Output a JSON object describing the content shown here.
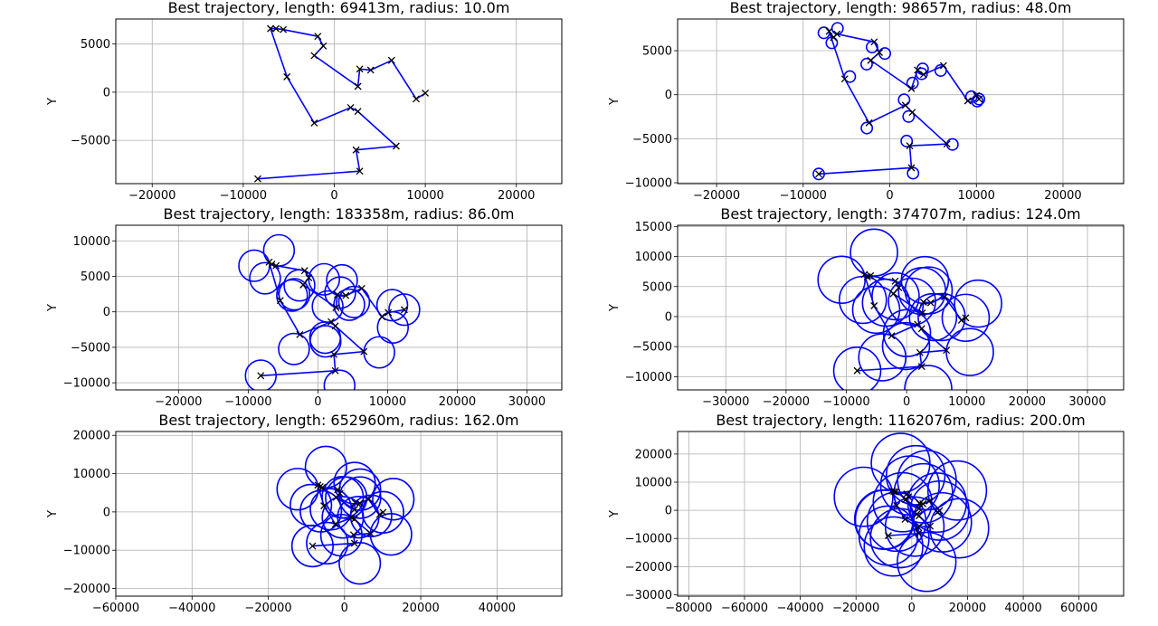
{
  "chart_data": [
    {
      "type": "line",
      "title": "Best trajectory, length: 69413m, radius: 10.0m",
      "ylabel": "Y",
      "xlim": [
        -24000,
        25000
      ],
      "ylim": [
        -9500,
        7600
      ],
      "xticks": [
        -20000,
        -10000,
        0,
        10000,
        20000
      ],
      "xtick_labels": [
        "−20000",
        "−10000",
        "0",
        "10000",
        "20000"
      ],
      "yticks": [
        -5000,
        0,
        5000
      ],
      "ytick_labels": [
        "−5000",
        "0",
        "5000"
      ],
      "grid": true,
      "trajectory": {
        "color": "#0000ff",
        "loop_radius": 10
      },
      "waypoints": [
        [
          -8400,
          -9000
        ],
        [
          2800,
          -8200
        ],
        [
          2400,
          -6000
        ],
        [
          6800,
          -5600
        ],
        [
          2600,
          -2000
        ],
        [
          1800,
          -1600
        ],
        [
          -2200,
          -3200
        ],
        [
          -5200,
          1600
        ],
        [
          -7000,
          6600
        ],
        [
          -6400,
          6600
        ],
        [
          -5600,
          6500
        ],
        [
          -1800,
          5800
        ],
        [
          -1200,
          4800
        ],
        [
          -2200,
          3800
        ],
        [
          2600,
          600
        ],
        [
          2800,
          2400
        ],
        [
          4000,
          2300
        ],
        [
          6300,
          3300
        ],
        [
          9000,
          -700
        ],
        [
          10000,
          -100
        ]
      ]
    },
    {
      "type": "line",
      "title": "Best trajectory, length: 98657m, radius: 48.0m",
      "ylabel": "Y",
      "xlim": [
        -24500,
        27000
      ],
      "ylim": [
        -10100,
        8600
      ],
      "xticks": [
        -20000,
        -10000,
        0,
        10000,
        20000
      ],
      "xtick_labels": [
        "−20000",
        "−10000",
        "0",
        "10000",
        "20000"
      ],
      "yticks": [
        -10000,
        -5000,
        0,
        5000
      ],
      "ytick_labels": [
        "−10000",
        "−5000",
        "0",
        "5000"
      ],
      "grid": true,
      "trajectory": {
        "color": "#0000ff",
        "loop_radius": 640
      },
      "waypoints": [
        [
          -8200,
          -9000
        ],
        [
          2500,
          -8300
        ],
        [
          2300,
          -5800
        ],
        [
          6600,
          -5600
        ],
        [
          2600,
          -2000
        ],
        [
          1800,
          -1200
        ],
        [
          -2400,
          -3200
        ],
        [
          -5200,
          1800
        ],
        [
          -7000,
          7200
        ],
        [
          -6500,
          6500
        ],
        [
          -6100,
          6900
        ],
        [
          -1800,
          6000
        ],
        [
          -1200,
          4800
        ],
        [
          -2200,
          3900
        ],
        [
          2500,
          700
        ],
        [
          3200,
          2800
        ],
        [
          3900,
          2300
        ],
        [
          6200,
          3300
        ],
        [
          9000,
          -700
        ],
        [
          10000,
          -100
        ],
        [
          10300,
          -500
        ]
      ]
    },
    {
      "type": "line",
      "title": "Best trajectory, length: 183358m, radius: 86.0m",
      "ylabel": "Y",
      "xlim": [
        -29000,
        35000
      ],
      "ylim": [
        -11000,
        12200
      ],
      "xticks": [
        -20000,
        -10000,
        0,
        10000,
        20000,
        30000
      ],
      "xtick_labels": [
        "−20000",
        "−10000",
        "0",
        "10000",
        "20000",
        "30000"
      ],
      "yticks": [
        -10000,
        -5000,
        0,
        5000,
        10000
      ],
      "ytick_labels": [
        "−10000",
        "−5000",
        "0",
        "5000",
        "10000"
      ],
      "grid": true,
      "trajectory": {
        "color": "#0000ff",
        "loop_radius": 2200
      },
      "waypoints": [
        [
          -8200,
          -9000
        ],
        [
          2500,
          -8300
        ],
        [
          2300,
          -6000
        ],
        [
          6600,
          -5600
        ],
        [
          2500,
          -2000
        ],
        [
          1900,
          -1400
        ],
        [
          -2600,
          -3200
        ],
        [
          -5400,
          1600
        ],
        [
          -7000,
          7000
        ],
        [
          -6600,
          6700
        ],
        [
          -6000,
          6500
        ],
        [
          -1900,
          5800
        ],
        [
          -1300,
          4800
        ],
        [
          -2100,
          3800
        ],
        [
          2600,
          600
        ],
        [
          2800,
          2400
        ],
        [
          4000,
          2300
        ],
        [
          6300,
          3300
        ],
        [
          9200,
          -700
        ],
        [
          10100,
          -100
        ],
        [
          12400,
          300
        ]
      ]
    },
    {
      "type": "line",
      "title": "Best trajectory, length: 374707m, radius: 124.0m",
      "ylabel": "Y",
      "xlim": [
        -38000,
        36000
      ],
      "ylim": [
        -12200,
        15200
      ],
      "xticks": [
        -30000,
        -20000,
        -10000,
        0,
        10000,
        20000,
        30000
      ],
      "xtick_labels": [
        "−30000",
        "−20000",
        "−10000",
        "0",
        "10000",
        "20000",
        "30000"
      ],
      "yticks": [
        -10000,
        -5000,
        0,
        5000,
        10000,
        15000
      ],
      "ytick_labels": [
        "−10000",
        "−5000",
        "0",
        "5000",
        "10000",
        "15000"
      ],
      "grid": true,
      "trajectory": {
        "color": "#0000ff",
        "loop_radius": 3900
      },
      "waypoints": [
        [
          -8200,
          -9000
        ],
        [
          2500,
          -8300
        ],
        [
          2200,
          -6000
        ],
        [
          6600,
          -5600
        ],
        [
          2500,
          -2000
        ],
        [
          1800,
          -1300
        ],
        [
          -2500,
          -3200
        ],
        [
          -5400,
          1800
        ],
        [
          -7000,
          7000
        ],
        [
          -6500,
          6600
        ],
        [
          -6000,
          6800
        ],
        [
          -1900,
          5900
        ],
        [
          -1300,
          4800
        ],
        [
          -2200,
          3800
        ],
        [
          2600,
          600
        ],
        [
          2800,
          2400
        ],
        [
          4000,
          2300
        ],
        [
          6300,
          3300
        ],
        [
          9100,
          -600
        ],
        [
          9800,
          -200
        ]
      ]
    },
    {
      "type": "line",
      "title": "Best trajectory, length: 652960m, radius: 162.0m",
      "ylabel": "Y",
      "xlim": [
        -60000,
        57000
      ],
      "ylim": [
        -22000,
        21000
      ],
      "xticks": [
        -60000,
        -40000,
        -20000,
        0,
        20000,
        40000
      ],
      "xtick_labels": [
        "−60000",
        "−40000",
        "−20000",
        "0",
        "20000",
        "40000"
      ],
      "yticks": [
        -20000,
        -10000,
        0,
        10000,
        20000
      ],
      "ytick_labels": [
        "−20000",
        "−10000",
        "0",
        "10000",
        "20000"
      ],
      "grid": true,
      "trajectory": {
        "color": "#0000ff",
        "loop_radius": 5400
      },
      "waypoints": [
        [
          -8400,
          -8900
        ],
        [
          2600,
          -8200
        ],
        [
          2400,
          -6000
        ],
        [
          6800,
          -5600
        ],
        [
          2600,
          -1900
        ],
        [
          1800,
          -1500
        ],
        [
          -2400,
          -3200
        ],
        [
          -5400,
          1600
        ],
        [
          -7000,
          7000
        ],
        [
          -6400,
          6600
        ],
        [
          -5800,
          6400
        ],
        [
          -1800,
          5800
        ],
        [
          -1200,
          4800
        ],
        [
          -2200,
          3800
        ],
        [
          2600,
          600
        ],
        [
          2800,
          2400
        ],
        [
          4000,
          2300
        ],
        [
          6300,
          3300
        ],
        [
          9200,
          -700
        ],
        [
          10100,
          -100
        ]
      ]
    },
    {
      "type": "line",
      "title": "Best trajectory, length: 1162076m, radius: 200.0m",
      "ylabel": "Y",
      "xlim": [
        -84000,
        76000
      ],
      "ylim": [
        -30500,
        28000
      ],
      "xticks": [
        -80000,
        -60000,
        -40000,
        -20000,
        0,
        20000,
        40000,
        60000
      ],
      "xtick_labels": [
        "−80000",
        "−60000",
        "−40000",
        "−20000",
        "0",
        "20000",
        "40000",
        "60000"
      ],
      "yticks": [
        -30000,
        -20000,
        -10000,
        0,
        10000,
        20000
      ],
      "ytick_labels": [
        "−30000",
        "−20000",
        "−10000",
        "0",
        "10000",
        "20000"
      ],
      "grid": true,
      "trajectory": {
        "color": "#0000ff",
        "loop_radius": 10500
      },
      "waypoints": [
        [
          -8400,
          -9000
        ],
        [
          2500,
          -8200
        ],
        [
          2300,
          -6000
        ],
        [
          6600,
          -5600
        ],
        [
          2600,
          -2000
        ],
        [
          1800,
          -1400
        ],
        [
          -2400,
          -3200
        ],
        [
          -5400,
          1700
        ],
        [
          -7000,
          6900
        ],
        [
          -6400,
          6600
        ],
        [
          -5800,
          6500
        ],
        [
          -1800,
          5800
        ],
        [
          -1200,
          4800
        ],
        [
          -2200,
          3800
        ],
        [
          2600,
          600
        ],
        [
          2800,
          2400
        ],
        [
          4000,
          2300
        ],
        [
          6300,
          3300
        ],
        [
          9200,
          -700
        ],
        [
          10000,
          -100
        ]
      ]
    }
  ]
}
